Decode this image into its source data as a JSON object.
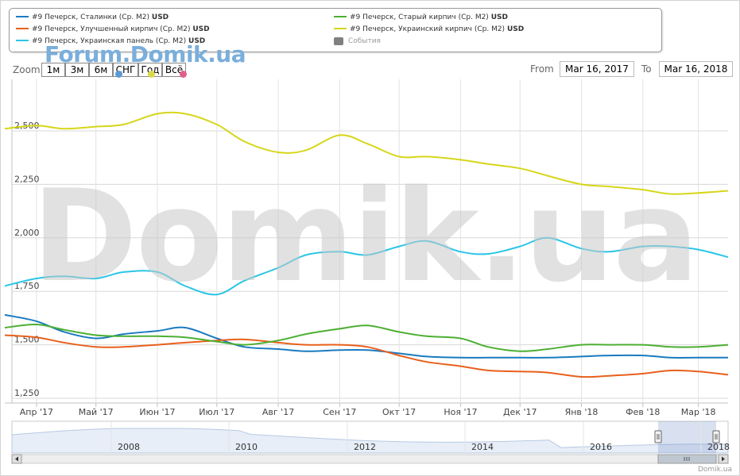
{
  "legend": {
    "items": [
      {
        "name": "#9 Печерск, Сталинки (Ср. М2)",
        "unit": "USD",
        "color": "#1a7ac0"
      },
      {
        "name": "#9 Печерск, Улучшенный кирпич (Ср. М2)",
        "unit": "USD",
        "color": "#e8601c"
      },
      {
        "name": "#9 Печерск, Украинская панель (Ср. М2)",
        "unit": "USD",
        "color": "#2bc5e6"
      },
      {
        "name": "#9 Печерск, Старый кирпич (Ср. М2)",
        "unit": "USD",
        "color": "#4caf33"
      },
      {
        "name": "#9 Печерск, Украинский кирпич (Ср. М2)",
        "unit": "USD",
        "color": "#d6d61a"
      }
    ],
    "events_label": "События",
    "events_color": "#808080"
  },
  "watermark": {
    "small": "Forum.Domik.ua",
    "big": "Domik.ua"
  },
  "zoom": {
    "label": "Zoom",
    "buttons": [
      "1м",
      "3м",
      "6м",
      "СНГ",
      "Год",
      "Всё"
    ],
    "dot_colors": [
      "#5b9bd5",
      "#d8d84a",
      "#e0608a"
    ]
  },
  "range": {
    "from_label": "From",
    "from_value": "Mar 16, 2017",
    "to_label": "To",
    "to_value": "Mar 16, 2018"
  },
  "navigator": {
    "years": [
      "2008",
      "2010",
      "2012",
      "2014",
      "2016",
      "2018"
    ]
  },
  "credit": "Domik.ua",
  "chart_data": {
    "type": "line",
    "y_ticks": [
      "1,250",
      "1,500",
      "1,750",
      "2,000",
      "2,250",
      "2,500"
    ],
    "ylim": [
      1250,
      2500
    ],
    "x_ticks": [
      "Апр '17",
      "Май '17",
      "Июн '17",
      "Июл '17",
      "Авг '17",
      "Сен '17",
      "Окт '17",
      "Ноя '17",
      "Дек '17",
      "Янв '18",
      "Фев '18",
      "Мар '18"
    ],
    "x": [
      "2017-03-16",
      "2017-04-01",
      "2017-04-15",
      "2017-05-01",
      "2017-05-15",
      "2017-06-01",
      "2017-06-15",
      "2017-07-01",
      "2017-07-15",
      "2017-08-01",
      "2017-08-15",
      "2017-09-01",
      "2017-09-15",
      "2017-10-01",
      "2017-10-15",
      "2017-11-01",
      "2017-11-15",
      "2017-12-01",
      "2017-12-15",
      "2018-01-01",
      "2018-01-15",
      "2018-02-01",
      "2018-02-15",
      "2018-03-01",
      "2018-03-16"
    ],
    "series": [
      {
        "name": "#9 Печерск, Сталинки (Ср. М2)",
        "color": "#1a7ac0",
        "values": [
          1640,
          1610,
          1560,
          1530,
          1550,
          1565,
          1580,
          1530,
          1490,
          1480,
          1470,
          1475,
          1475,
          1460,
          1445,
          1440,
          1440,
          1440,
          1440,
          1445,
          1450,
          1450,
          1440,
          1440,
          1440
        ]
      },
      {
        "name": "#9 Печерск, Улучшенный кирпич (Ср. М2)",
        "color": "#e8601c",
        "values": [
          1545,
          1535,
          1510,
          1490,
          1490,
          1500,
          1510,
          1520,
          1525,
          1510,
          1500,
          1500,
          1490,
          1450,
          1420,
          1400,
          1380,
          1375,
          1370,
          1350,
          1355,
          1365,
          1380,
          1375,
          1360
        ]
      },
      {
        "name": "#9 Печерск, Украинская панель (Ср. М2)",
        "color": "#2bc5e6",
        "values": [
          1775,
          1810,
          1820,
          1810,
          1840,
          1840,
          1775,
          1735,
          1800,
          1860,
          1920,
          1935,
          1920,
          1960,
          1985,
          1935,
          1925,
          1960,
          2000,
          1950,
          1935,
          1960,
          1960,
          1945,
          1910
        ]
      },
      {
        "name": "#9 Печерск, Старый кирпич (Ср. М2)",
        "color": "#4caf33",
        "values": [
          1580,
          1595,
          1570,
          1545,
          1540,
          1540,
          1535,
          1515,
          1500,
          1520,
          1550,
          1575,
          1590,
          1560,
          1540,
          1530,
          1490,
          1470,
          1480,
          1500,
          1500,
          1500,
          1490,
          1490,
          1500
        ]
      },
      {
        "name": "#9 Печерск, Украинский кирпич (Ср. М2)",
        "color": "#d6d61a",
        "values": [
          2510,
          2525,
          2510,
          2520,
          2530,
          2580,
          2580,
          2530,
          2450,
          2400,
          2410,
          2480,
          2440,
          2380,
          2380,
          2365,
          2345,
          2325,
          2290,
          2250,
          2240,
          2225,
          2205,
          2210,
          2220
        ]
      }
    ],
    "grid": true,
    "legend_position": "top"
  }
}
